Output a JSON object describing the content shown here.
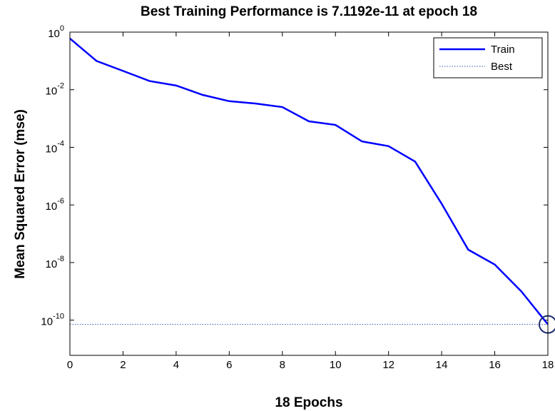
{
  "chart_data": {
    "type": "line",
    "title": "Best Training Performance is 7.1192e-11 at epoch 18",
    "xlabel": "18 Epochs",
    "ylabel": "Mean Squared Error  (mse)",
    "x": [
      0,
      1,
      2,
      3,
      4,
      5,
      6,
      7,
      8,
      9,
      10,
      11,
      12,
      13,
      14,
      15,
      16,
      17,
      18
    ],
    "series": [
      {
        "name": "Train",
        "color": "#0000ff",
        "values": [
          0.6,
          0.1,
          0.045,
          0.02,
          0.014,
          0.0066,
          0.004,
          0.0033,
          0.0025,
          0.0008,
          0.0006,
          0.00016,
          0.00011,
          3.2e-05,
          1.1e-06,
          2.8e-08,
          8.5e-09,
          1e-09,
          7.1192e-11
        ]
      },
      {
        "name": "Best",
        "color": "#3355aa"
      }
    ],
    "best": {
      "x": 18,
      "y": 7.1192e-11
    },
    "xlim": [
      0,
      18
    ],
    "xticks": [
      0,
      2,
      4,
      6,
      8,
      10,
      12,
      14,
      16,
      18
    ],
    "ylim": [
      6e-12,
      1
    ],
    "yscale": "log",
    "yticks": [
      {
        "value": 1,
        "label": "10^0"
      },
      {
        "value": 0.01,
        "label": "10^-2"
      },
      {
        "value": 0.0001,
        "label": "10^-4"
      },
      {
        "value": 1e-06,
        "label": "10^-6"
      },
      {
        "value": 1e-08,
        "label": "10^-8"
      },
      {
        "value": 1e-10,
        "label": "10^-10"
      }
    ],
    "legend": "upper right"
  }
}
